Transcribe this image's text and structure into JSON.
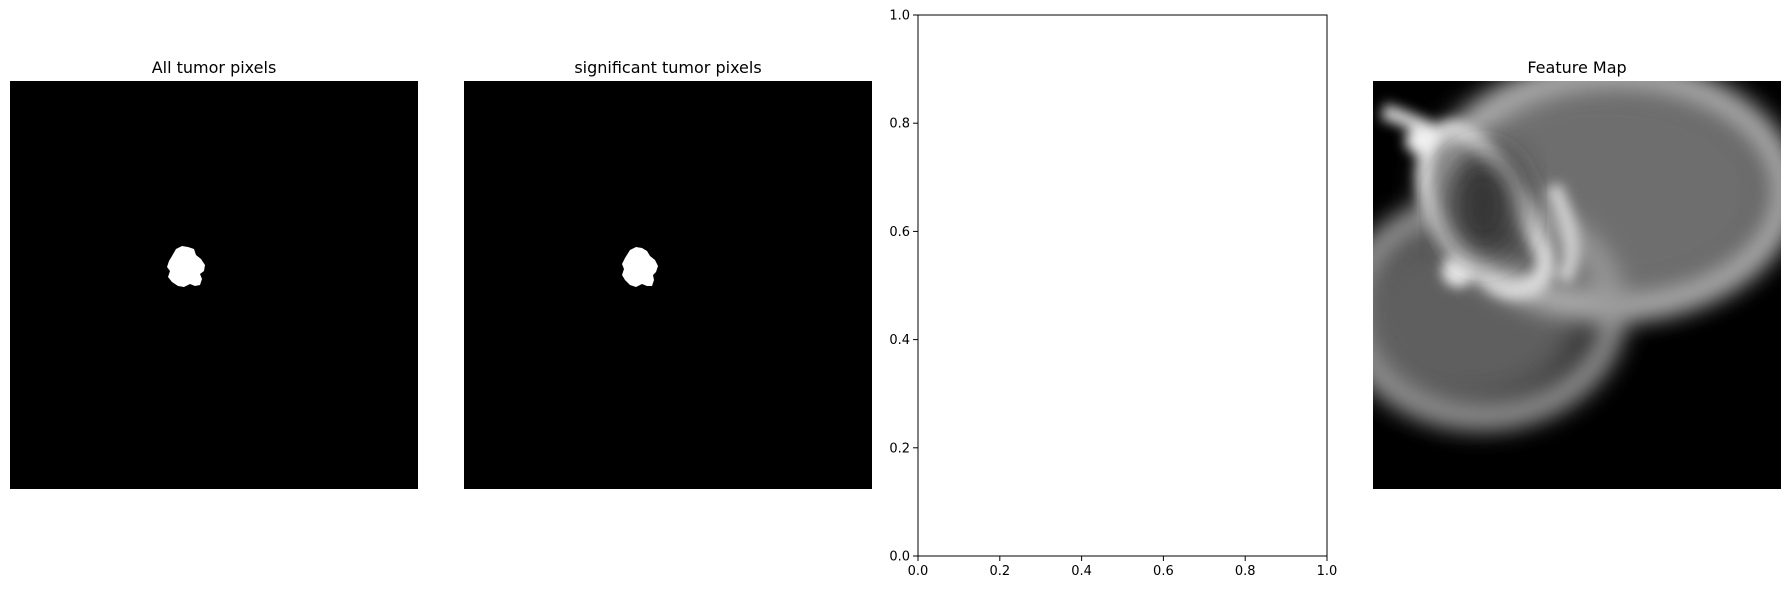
{
  "panels": [
    {
      "title": "All tumor pixels",
      "kind": "mask"
    },
    {
      "title": "significant tumor pixels",
      "kind": "mask"
    },
    {
      "title": "",
      "kind": "empty-axes"
    },
    {
      "title": "Feature Map",
      "kind": "heatmap"
    }
  ],
  "chart_data": [
    {
      "type": "heatmap",
      "title": "All tumor pixels",
      "colormap": "gray",
      "axis": "off",
      "description_values": {
        "background": 0,
        "blob": 1
      }
    },
    {
      "type": "heatmap",
      "title": "significant tumor pixels",
      "colormap": "gray",
      "axis": "off",
      "description_values": {
        "background": 0,
        "blob": 1
      }
    },
    {
      "type": "line",
      "title": "",
      "xlabel": "",
      "ylabel": "",
      "xlim": [
        0.0,
        1.0
      ],
      "ylim": [
        0.0,
        1.0
      ],
      "x_ticks": [
        "0.0",
        "0.2",
        "0.4",
        "0.6",
        "0.8",
        "1.0"
      ],
      "y_ticks": [
        "0.0",
        "0.2",
        "0.4",
        "0.6",
        "0.8",
        "1.0"
      ],
      "series": [],
      "grid": false
    },
    {
      "type": "heatmap",
      "title": "Feature Map",
      "colormap": "gray",
      "axis": "off"
    }
  ]
}
